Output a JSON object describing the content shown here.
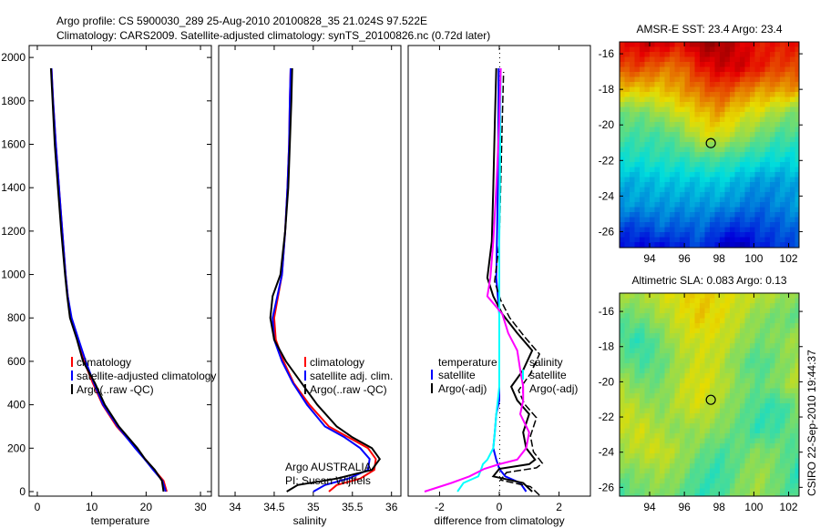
{
  "title_line1": "Argo profile: CS 5900030_289 25-Aug-2010 20100828_35 21.024S 97.522E",
  "title_line2": "Climatology: CARS2009. Satellite-adjusted climatology: synTS_20100826.nc (0.72d later)",
  "credit": "CSIRO 22-Sep-2010 19:44:37",
  "colors": {
    "climatology": "#ff0000",
    "satellite": "#0000ff",
    "argo": "#000000",
    "sal_satellite": "#00ffff",
    "sal_argo": "#ff00ff"
  },
  "chart_data": [
    {
      "type": "line",
      "id": "temperature",
      "xlabel": "temperature",
      "ylabel": "",
      "xlim": [
        -1.5,
        32
      ],
      "ylim": [
        2055,
        -21
      ],
      "xticks": [
        0,
        10,
        20,
        30
      ],
      "yticks": [
        0,
        200,
        400,
        600,
        800,
        1000,
        1200,
        1400,
        1600,
        1800,
        2000
      ],
      "legend": [
        "climatology",
        "satellite-adjusted climatology",
        "Argo(..raw -QC)"
      ],
      "legend_placement": "lower-right",
      "depth": [
        0,
        50,
        100,
        150,
        200,
        300,
        400,
        500,
        600,
        700,
        800,
        900,
        1000,
        1200,
        1400,
        1600,
        1800,
        1950
      ],
      "series": [
        {
          "name": "climatology",
          "color_key": "climatology",
          "values": [
            23.8,
            23.2,
            21.5,
            19.8,
            18.2,
            14.6,
            12.0,
            10.2,
            8.6,
            7.4,
            6.2,
            5.6,
            5.2,
            4.6,
            4.0,
            3.4,
            2.9,
            2.6
          ]
        },
        {
          "name": "satellite-adjusted climatology",
          "color_key": "satellite",
          "values": [
            23.6,
            23.0,
            21.3,
            19.7,
            18.0,
            14.8,
            12.1,
            10.4,
            8.9,
            7.6,
            6.3,
            5.6,
            5.2,
            4.6,
            4.0,
            3.4,
            2.9,
            2.6
          ]
        },
        {
          "name": "Argo(..raw -QC)",
          "color_key": "argo",
          "values": [
            23.2,
            22.9,
            21.6,
            19.8,
            18.4,
            15.0,
            12.4,
            10.6,
            8.4,
            7.3,
            6.0,
            5.5,
            5.1,
            4.4,
            3.8,
            3.2,
            2.8,
            2.5
          ]
        }
      ]
    },
    {
      "type": "line",
      "id": "salinity",
      "xlabel": "salinity",
      "ylabel": "",
      "xlim": [
        33.79,
        36.12
      ],
      "ylim": [
        2055,
        -21
      ],
      "xticks": [
        34,
        34.5,
        35,
        35.5,
        36
      ],
      "yticks": [],
      "legend": [
        "climatology",
        "satellite adj. clim.",
        "Argo(..raw -QC)"
      ],
      "legend_placement": "lower-right",
      "annotations": [
        "Argo AUSTRALIA",
        "PI: Susan Wijffels"
      ],
      "depth": [
        0,
        30,
        60,
        100,
        150,
        200,
        250,
        300,
        400,
        500,
        600,
        700,
        800,
        900,
        1000,
        1200,
        1400,
        1600,
        1800,
        1950
      ],
      "series": [
        {
          "name": "climatology",
          "color_key": "climatology",
          "values": [
            35.2,
            35.3,
            35.6,
            35.78,
            35.8,
            35.7,
            35.45,
            35.2,
            34.95,
            34.75,
            34.62,
            34.52,
            34.5,
            34.55,
            34.6,
            34.64,
            34.67,
            34.69,
            34.7,
            34.71
          ]
        },
        {
          "name": "satellite adj. clim.",
          "color_key": "satellite",
          "values": [
            35.0,
            35.15,
            35.45,
            35.7,
            35.72,
            35.6,
            35.4,
            35.15,
            34.92,
            34.74,
            34.6,
            34.5,
            34.48,
            34.54,
            34.6,
            34.64,
            34.67,
            34.69,
            34.7,
            34.71
          ]
        },
        {
          "name": "Argo(..raw -QC)",
          "color_key": "argo",
          "values": [
            34.66,
            34.8,
            35.3,
            35.75,
            35.85,
            35.75,
            35.5,
            35.3,
            35.05,
            34.85,
            34.65,
            34.5,
            34.45,
            34.48,
            34.58,
            34.64,
            34.68,
            34.7,
            34.72,
            34.73
          ]
        }
      ]
    },
    {
      "type": "line",
      "id": "difference",
      "xlabel": "difference from climatology",
      "ylabel": "",
      "xlim": [
        -3.05,
        3.05
      ],
      "ylim": [
        2055,
        -21
      ],
      "xticks": [
        -2,
        0,
        2
      ],
      "yticks": [],
      "legend_headers": [
        "temperature",
        "salinity"
      ],
      "legend": [
        "satellite",
        "Argo(-adj)",
        "satellite",
        "Argo(-adj)"
      ],
      "legend_placement": "lower-center",
      "depth": [
        0,
        40,
        70,
        105,
        126,
        147,
        200,
        273,
        357,
        420,
        483,
        560,
        650,
        730,
        818,
        900,
        985,
        1153,
        1400,
        1700,
        1950
      ],
      "series": [
        {
          "name": "temperature satellite",
          "color_key": "satellite",
          "values": [
            0.9,
            0.7,
            0.2,
            0,
            -0.05,
            -0.1,
            -0.2,
            -0.15,
            -0.1,
            0,
            0,
            0,
            0,
            0,
            0,
            -0.05,
            -0.1,
            -0.08,
            -0.05,
            -0.03,
            -0.02
          ]
        },
        {
          "name": "temperature Argo(-adj)",
          "color_key": "argo",
          "values": [
            1.1,
            0.8,
            -0.2,
            0,
            1.0,
            1.2,
            0.9,
            0.8,
            1.0,
            0.6,
            0.4,
            0.8,
            1.1,
            0.6,
            0.1,
            -0.2,
            -0.4,
            -0.25,
            -0.2,
            -0.15,
            -0.1
          ]
        },
        {
          "name": "salinity satellite",
          "color_key": "sal_satellite",
          "values": [
            -1.4,
            -1.2,
            -0.7,
            -0.6,
            -0.55,
            -0.4,
            -0.2,
            -0.15,
            -0.1,
            -0.05,
            0,
            0,
            0,
            0,
            0,
            0,
            0,
            0,
            0.02,
            0.03,
            0.05
          ]
        },
        {
          "name": "salinity Argo(-adj)",
          "color_key": "sal_argo",
          "values": [
            -2.5,
            -1.6,
            -1.0,
            -0.5,
            0,
            0.6,
            0.9,
            1.0,
            0.7,
            0.8,
            0.8,
            0.7,
            0.6,
            0.3,
            0.1,
            -0.4,
            -0.3,
            -0.2,
            -0.1,
            0,
            0.05
          ]
        }
      ]
    },
    {
      "type": "heatmap",
      "id": "sst",
      "title": "AMSR-E SST: 23.4  Argo: 23.4",
      "xlim": [
        92.27,
        102.6
      ],
      "ylim": [
        -26.9,
        -15.33
      ],
      "xticks": [
        94,
        96,
        98,
        100,
        102
      ],
      "yticks": [
        -16,
        -18,
        -20,
        -22,
        -24,
        -26
      ],
      "marker": [
        97.522,
        -21.024
      ],
      "grid": [
        [
          0.85,
          0.9,
          0.9,
          0.85,
          0.95,
          0.95,
          0.9,
          0.85,
          0.85,
          0.85
        ],
        [
          0.8,
          0.8,
          0.75,
          0.75,
          0.85,
          0.9,
          0.9,
          0.85,
          0.8,
          0.8
        ],
        [
          0.65,
          0.65,
          0.65,
          0.7,
          0.75,
          0.8,
          0.75,
          0.7,
          0.7,
          0.7
        ],
        [
          0.5,
          0.5,
          0.55,
          0.6,
          0.65,
          0.7,
          0.62,
          0.6,
          0.55,
          0.5
        ],
        [
          0.45,
          0.45,
          0.45,
          0.5,
          0.6,
          0.6,
          0.55,
          0.5,
          0.45,
          0.45
        ],
        [
          0.4,
          0.4,
          0.42,
          0.42,
          0.45,
          0.45,
          0.42,
          0.4,
          0.38,
          0.38
        ],
        [
          0.32,
          0.33,
          0.35,
          0.35,
          0.35,
          0.36,
          0.33,
          0.3,
          0.3,
          0.32
        ],
        [
          0.3,
          0.3,
          0.3,
          0.3,
          0.3,
          0.3,
          0.28,
          0.25,
          0.28,
          0.3
        ],
        [
          0.2,
          0.2,
          0.25,
          0.22,
          0.25,
          0.2,
          0.18,
          0.2,
          0.22,
          0.25
        ],
        [
          0.15,
          0.12,
          0.12,
          0.15,
          0.2,
          0.1,
          0.05,
          0.15,
          0.18,
          0.2
        ]
      ]
    },
    {
      "type": "heatmap",
      "id": "sla",
      "title": "Altimetric SLA: 0.083  Argo: 0.13",
      "xlim": [
        92.27,
        102.6
      ],
      "ylim": [
        -26.5,
        -14.96
      ],
      "xticks": [
        94,
        96,
        98,
        100,
        102
      ],
      "yticks": [
        -16,
        -18,
        -20,
        -22,
        -24,
        -26
      ],
      "marker": [
        97.522,
        -21.024
      ],
      "grid": [
        [
          0.55,
          0.55,
          0.6,
          0.62,
          0.65,
          0.62,
          0.6,
          0.58,
          0.55,
          0.52
        ],
        [
          0.48,
          0.5,
          0.55,
          0.6,
          0.65,
          0.62,
          0.58,
          0.52,
          0.5,
          0.48
        ],
        [
          0.45,
          0.42,
          0.5,
          0.58,
          0.6,
          0.6,
          0.55,
          0.5,
          0.52,
          0.55
        ],
        [
          0.5,
          0.45,
          0.48,
          0.55,
          0.6,
          0.58,
          0.5,
          0.45,
          0.5,
          0.55
        ],
        [
          0.55,
          0.5,
          0.5,
          0.58,
          0.62,
          0.58,
          0.52,
          0.48,
          0.52,
          0.58
        ],
        [
          0.6,
          0.55,
          0.52,
          0.58,
          0.6,
          0.55,
          0.5,
          0.45,
          0.42,
          0.5
        ],
        [
          0.58,
          0.6,
          0.55,
          0.52,
          0.55,
          0.52,
          0.48,
          0.42,
          0.45,
          0.5
        ],
        [
          0.55,
          0.58,
          0.6,
          0.55,
          0.5,
          0.45,
          0.48,
          0.52,
          0.5,
          0.45
        ],
        [
          0.5,
          0.52,
          0.55,
          0.52,
          0.45,
          0.42,
          0.5,
          0.55,
          0.5,
          0.42
        ],
        [
          0.45,
          0.5,
          0.52,
          0.48,
          0.42,
          0.45,
          0.52,
          0.55,
          0.48,
          0.45
        ]
      ]
    }
  ]
}
